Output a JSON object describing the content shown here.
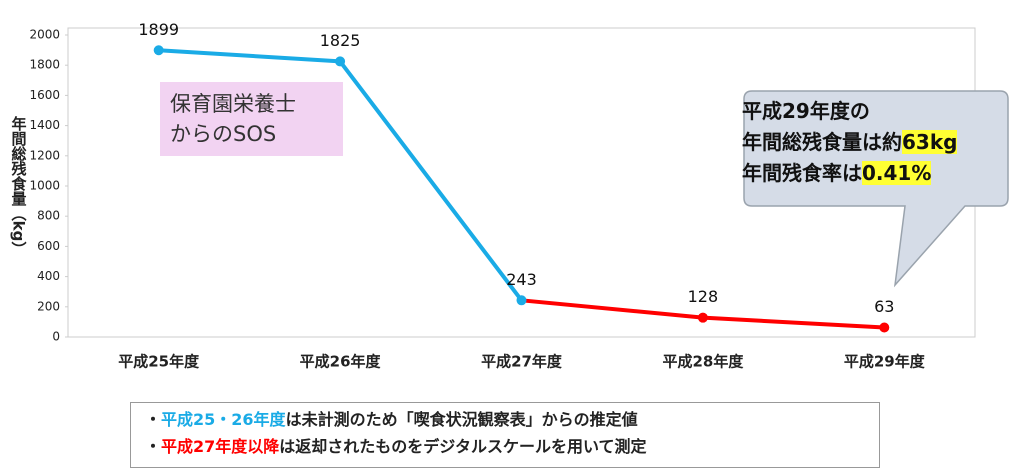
{
  "chart_data": {
    "type": "line",
    "y_label": "年間総残食量（kg）",
    "categories": [
      "平成25年度",
      "平成26年度",
      "平成27年度",
      "平成28年度",
      "平成29年度"
    ],
    "values": [
      1899,
      1825,
      243,
      128,
      63
    ],
    "segment_colors": [
      "#1aabe6",
      "#1aabe6",
      "#ff0000",
      "#ff0000"
    ],
    "marker_colors": [
      "#1aabe6",
      "#1aabe6",
      "#1aabe6",
      "#ff0000",
      "#ff0000"
    ],
    "ylim": [
      0,
      2000
    ],
    "yticks": [
      0,
      200,
      400,
      600,
      800,
      1000,
      1200,
      1400,
      1600,
      1800,
      2000
    ],
    "grid": false,
    "annotations": {
      "sos": [
        "保育園栄養士",
        "からのSOS"
      ],
      "callout": [
        [
          {
            "text": "平成29年度の"
          }
        ],
        [
          {
            "text": "年間総残食量は約"
          },
          {
            "text": "63kg",
            "highlight": true
          }
        ],
        [
          {
            "text": "年間残食率は"
          },
          {
            "text": "0.41%",
            "highlight": true
          }
        ]
      ]
    }
  },
  "notes": [
    [
      {
        "text": "・"
      },
      {
        "text": "平成25・26年度",
        "color": "#1aabe6"
      },
      {
        "text": "は未計測のため「喫食状況観察表」からの推定値"
      }
    ],
    [
      {
        "text": "・"
      },
      {
        "text": "平成27年度以降",
        "color": "#ff0000"
      },
      {
        "text": "は返却されたものをデジタルスケールを用いて測定"
      }
    ]
  ]
}
